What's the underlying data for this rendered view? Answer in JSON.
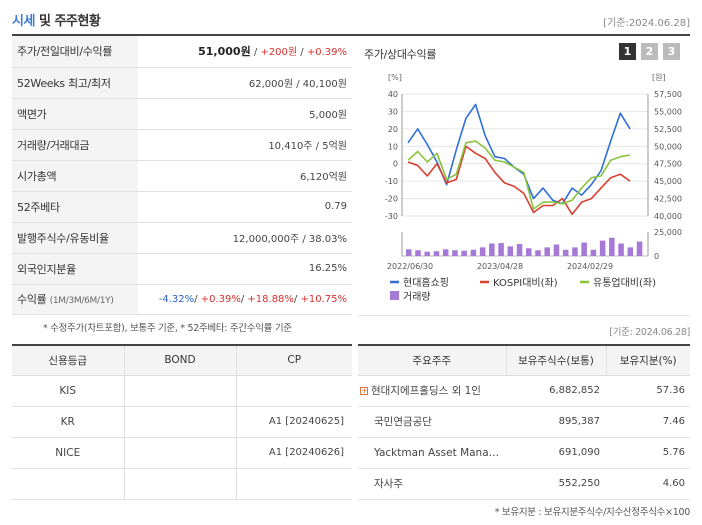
{
  "header": {
    "title_part1": "시세",
    "title_part2": "및 주주현황",
    "base_date": "[기준:2024.06.28]"
  },
  "stats": [
    {
      "label": "주가/전일대비/수익률",
      "v1": "51,000원",
      "sep1": " / ",
      "v2": "+200원",
      "sep2": " / ",
      "v3": "+0.39%"
    },
    {
      "label": "52Weeks 최고/최저",
      "value": "62,000원 / 40,100원"
    },
    {
      "label": "액면가",
      "value": "5,000원"
    },
    {
      "label": "거래량/거래대금",
      "value": "10,410주 / 5억원"
    },
    {
      "label": "시가총액",
      "value": "6,120억원"
    },
    {
      "label": "52주베타",
      "value": "0.79"
    },
    {
      "label": "발행주식수/유동비율",
      "value": "12,000,000주 / 38.03%"
    },
    {
      "label": "외국인지분율",
      "value": "16.25%"
    }
  ],
  "returns": {
    "label": "수익률",
    "label_sub": "(1M/3M/6M/1Y)",
    "r1": "-4.32%",
    "r2": "+0.39%",
    "r3": "+18.88%",
    "r4": "+10.75%",
    "sep": "/ "
  },
  "chart_panel": {
    "title": "주가/상대수익률",
    "tabs": [
      "1",
      "2",
      "3"
    ]
  },
  "chart_data": {
    "type": "line",
    "x_tick_labels": [
      "2022/06/30",
      "2023/04/28",
      "2024/02/29"
    ],
    "left_axis_unit": "[%]",
    "right_axis_unit": "[원]",
    "left_ticks": [
      "40",
      "30",
      "20",
      "10",
      "0",
      "-10",
      "-20",
      "-30"
    ],
    "right_ticks": [
      "57,500",
      "55,000",
      "52,500",
      "50,000",
      "47,500",
      "45,000",
      "42,500",
      "40,000"
    ],
    "volume_ticks": [
      "25,000",
      "0"
    ],
    "ylim_left": [
      -30,
      40
    ],
    "ylim_volume": [
      0,
      25000
    ],
    "series": [
      {
        "name": "현대홈쇼핑",
        "color": "#2f6fd6",
        "values": [
          12,
          20,
          11,
          1,
          -12,
          8,
          26,
          34,
          16,
          4,
          3,
          -2,
          -6,
          -20,
          -14,
          -21,
          -23,
          -14,
          -18,
          -12,
          -4,
          13,
          29,
          20
        ]
      },
      {
        "name": "KOSPI대비(좌)",
        "color": "#d8412f",
        "values": [
          1,
          -1,
          -7,
          0,
          -11,
          -9,
          10,
          6,
          3,
          -5,
          -11,
          -13,
          -17,
          -28,
          -24,
          -24,
          -20,
          -29,
          -22,
          -20,
          -14,
          -8,
          -6,
          -10
        ]
      },
      {
        "name": "유통업대비(좌)",
        "color": "#8ac43f",
        "values": [
          2,
          7,
          1,
          6,
          -9,
          -6,
          12,
          13,
          9,
          2,
          1,
          -2,
          -5,
          -26,
          -22,
          -22,
          -23,
          -21,
          -14,
          -8,
          -7,
          2,
          4,
          5
        ]
      }
    ],
    "volume": {
      "name": "거래량",
      "color": "#a57ad6",
      "values": [
        7000,
        6000,
        4500,
        5000,
        7000,
        6000,
        5500,
        6500,
        9000,
        13000,
        13500,
        10000,
        12500,
        8000,
        6000,
        9000,
        12000,
        6500,
        9000,
        14000,
        6500,
        16000,
        19000,
        13000,
        9000,
        15000
      ]
    }
  },
  "footnotes": {
    "left": "* 수정주가(차트포함), 보통주 기준, * 52주베타: 주간수익률 기준",
    "right": "[기준: 2024.06.28]",
    "bottom": "* 보유지분 : 보유지분주식수/지수산정주식수×100"
  },
  "credit": {
    "headers": [
      "신용등급",
      "BOND",
      "CP"
    ],
    "rows": [
      {
        "agency": "KIS",
        "bond": "",
        "cp": ""
      },
      {
        "agency": "KR",
        "bond": "",
        "cp": "A1  [20240625]"
      },
      {
        "agency": "NICE",
        "bond": "",
        "cp": "A1  [20240626]"
      },
      {
        "agency": "",
        "bond": "",
        "cp": ""
      }
    ]
  },
  "shareholders": {
    "headers": [
      "주요주주",
      "보유주식수(보통)",
      "보유지분(%)"
    ],
    "rows": [
      {
        "name": "현대지에프홀딩스 외 1인",
        "shares": "6,882,852",
        "pct": "57.36",
        "expandable": true
      },
      {
        "name": "국민연금공단",
        "shares": "895,387",
        "pct": "7.46"
      },
      {
        "name": "Yacktman Asset Mana…",
        "shares": "691,090",
        "pct": "5.76"
      },
      {
        "name": "자사주",
        "shares": "552,250",
        "pct": "4.60"
      }
    ]
  }
}
